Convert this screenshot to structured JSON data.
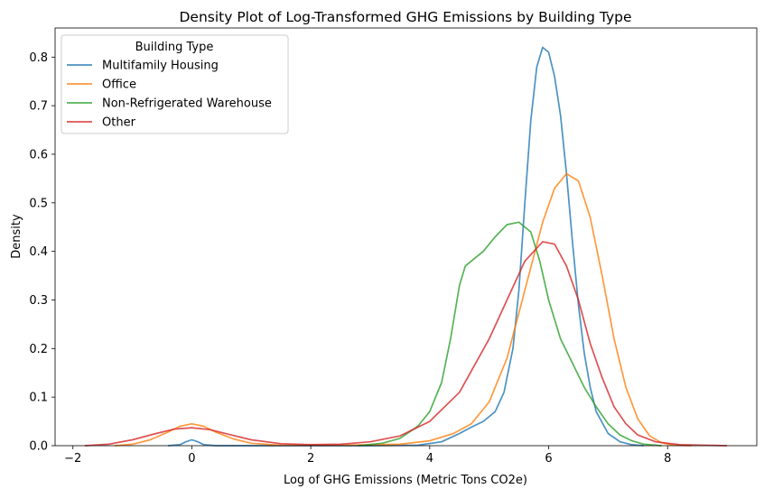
{
  "chart_data": {
    "type": "line",
    "title": "Density Plot of Log-Transformed GHG Emissions by Building Type",
    "xlabel": "Log of GHG Emissions (Metric Tons CO2e)",
    "ylabel": "Density",
    "xlim": [
      -2.3,
      9.5
    ],
    "ylim": [
      0,
      0.86
    ],
    "xticks": [
      -2,
      0,
      2,
      4,
      6,
      8
    ],
    "xtick_labels": [
      "−2",
      "0",
      "2",
      "4",
      "6",
      "8"
    ],
    "yticks": [
      0.0,
      0.1,
      0.2,
      0.3,
      0.4,
      0.5,
      0.6,
      0.7,
      0.8
    ],
    "ytick_labels": [
      "0.0",
      "0.1",
      "0.2",
      "0.3",
      "0.4",
      "0.5",
      "0.6",
      "0.7",
      "0.8"
    ],
    "grid": false,
    "legend": {
      "title": "Building Type",
      "placement": "top-left"
    },
    "series": [
      {
        "name": "Multifamily Housing",
        "color": "#1f77b4",
        "points": [
          [
            -0.4,
            0
          ],
          [
            -0.2,
            0.002
          ],
          [
            -0.1,
            0.008
          ],
          [
            0,
            0.012
          ],
          [
            0.1,
            0.008
          ],
          [
            0.2,
            0.002
          ],
          [
            0.4,
            0
          ],
          [
            1,
            0
          ],
          [
            2,
            0
          ],
          [
            3,
            0
          ],
          [
            3.8,
            0.001
          ],
          [
            4.2,
            0.008
          ],
          [
            4.5,
            0.025
          ],
          [
            4.7,
            0.038
          ],
          [
            4.9,
            0.05
          ],
          [
            5.1,
            0.07
          ],
          [
            5.25,
            0.11
          ],
          [
            5.4,
            0.2
          ],
          [
            5.5,
            0.32
          ],
          [
            5.6,
            0.5
          ],
          [
            5.7,
            0.67
          ],
          [
            5.8,
            0.78
          ],
          [
            5.9,
            0.82
          ],
          [
            6.0,
            0.81
          ],
          [
            6.1,
            0.76
          ],
          [
            6.2,
            0.68
          ],
          [
            6.3,
            0.56
          ],
          [
            6.4,
            0.42
          ],
          [
            6.5,
            0.29
          ],
          [
            6.6,
            0.19
          ],
          [
            6.7,
            0.12
          ],
          [
            6.8,
            0.07
          ],
          [
            7.0,
            0.025
          ],
          [
            7.2,
            0.008
          ],
          [
            7.4,
            0.002
          ],
          [
            7.6,
            0
          ]
        ]
      },
      {
        "name": "Office",
        "color": "#ff7f0e",
        "points": [
          [
            -1.3,
            0
          ],
          [
            -1.0,
            0.003
          ],
          [
            -0.7,
            0.012
          ],
          [
            -0.4,
            0.028
          ],
          [
            -0.2,
            0.04
          ],
          [
            0,
            0.045
          ],
          [
            0.2,
            0.04
          ],
          [
            0.4,
            0.028
          ],
          [
            0.7,
            0.014
          ],
          [
            1.0,
            0.005
          ],
          [
            1.5,
            0.001
          ],
          [
            2.5,
            0.001
          ],
          [
            3.5,
            0.003
          ],
          [
            4.0,
            0.01
          ],
          [
            4.4,
            0.025
          ],
          [
            4.7,
            0.045
          ],
          [
            5.0,
            0.09
          ],
          [
            5.3,
            0.18
          ],
          [
            5.6,
            0.32
          ],
          [
            5.9,
            0.46
          ],
          [
            6.1,
            0.53
          ],
          [
            6.3,
            0.56
          ],
          [
            6.5,
            0.545
          ],
          [
            6.7,
            0.47
          ],
          [
            6.9,
            0.35
          ],
          [
            7.1,
            0.22
          ],
          [
            7.3,
            0.12
          ],
          [
            7.5,
            0.055
          ],
          [
            7.7,
            0.02
          ],
          [
            7.9,
            0.006
          ],
          [
            8.1,
            0.001
          ],
          [
            8.4,
            0
          ]
        ]
      },
      {
        "name": "Non-Refrigerated Warehouse",
        "color": "#2ca02c",
        "points": [
          [
            2.8,
            0
          ],
          [
            3.2,
            0.005
          ],
          [
            3.5,
            0.015
          ],
          [
            3.8,
            0.04
          ],
          [
            4.0,
            0.07
          ],
          [
            4.2,
            0.13
          ],
          [
            4.35,
            0.22
          ],
          [
            4.5,
            0.33
          ],
          [
            4.6,
            0.37
          ],
          [
            4.75,
            0.385
          ],
          [
            4.9,
            0.4
          ],
          [
            5.1,
            0.43
          ],
          [
            5.3,
            0.455
          ],
          [
            5.5,
            0.46
          ],
          [
            5.7,
            0.44
          ],
          [
            5.85,
            0.38
          ],
          [
            6.0,
            0.3
          ],
          [
            6.2,
            0.22
          ],
          [
            6.4,
            0.17
          ],
          [
            6.6,
            0.12
          ],
          [
            6.8,
            0.08
          ],
          [
            7.0,
            0.045
          ],
          [
            7.2,
            0.022
          ],
          [
            7.4,
            0.01
          ],
          [
            7.6,
            0.003
          ],
          [
            7.9,
            0
          ]
        ]
      },
      {
        "name": "Other",
        "color": "#d62728",
        "points": [
          [
            -1.8,
            0
          ],
          [
            -1.4,
            0.003
          ],
          [
            -1.0,
            0.012
          ],
          [
            -0.6,
            0.025
          ],
          [
            -0.3,
            0.034
          ],
          [
            0,
            0.037
          ],
          [
            0.3,
            0.033
          ],
          [
            0.6,
            0.024
          ],
          [
            1.0,
            0.012
          ],
          [
            1.5,
            0.004
          ],
          [
            2.0,
            0.002
          ],
          [
            2.5,
            0.003
          ],
          [
            3.0,
            0.008
          ],
          [
            3.5,
            0.02
          ],
          [
            4.0,
            0.05
          ],
          [
            4.5,
            0.11
          ],
          [
            5.0,
            0.22
          ],
          [
            5.3,
            0.3
          ],
          [
            5.6,
            0.38
          ],
          [
            5.9,
            0.42
          ],
          [
            6.1,
            0.415
          ],
          [
            6.3,
            0.37
          ],
          [
            6.5,
            0.3
          ],
          [
            6.7,
            0.21
          ],
          [
            6.9,
            0.14
          ],
          [
            7.1,
            0.08
          ],
          [
            7.3,
            0.045
          ],
          [
            7.5,
            0.022
          ],
          [
            7.8,
            0.008
          ],
          [
            8.2,
            0.002
          ],
          [
            9.0,
            0
          ]
        ]
      }
    ]
  }
}
